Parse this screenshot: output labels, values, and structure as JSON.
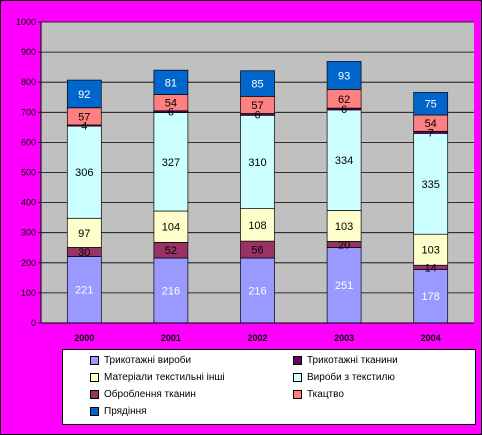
{
  "chart_data": {
    "type": "bar",
    "stacked": true,
    "categories": [
      "2000",
      "2001",
      "2002",
      "2003",
      "2004"
    ],
    "ylim": [
      0,
      1000
    ],
    "yticks": [
      0,
      100,
      200,
      300,
      400,
      500,
      600,
      700,
      800,
      900,
      1000
    ],
    "grid": true,
    "legend_position": "bottom",
    "series": [
      {
        "name": "Трикотажні вироби",
        "values": [
          221,
          216,
          216,
          251,
          178
        ],
        "color": "#9999ff"
      },
      {
        "name": "Оброблення тканин",
        "values": [
          30,
          52,
          56,
          20,
          14
        ],
        "color": "#993366"
      },
      {
        "name": "Матеріали текстильні інші",
        "values": [
          97,
          104,
          108,
          103,
          103
        ],
        "color": "#ffffcc"
      },
      {
        "name": "Вироби з текстилю",
        "values": [
          306,
          327,
          310,
          334,
          335
        ],
        "color": "#ccffff"
      },
      {
        "name": "Трикотажні тканини",
        "values": [
          4,
          6,
          6,
          6,
          7
        ],
        "color": "#660066"
      },
      {
        "name": "Ткацтво",
        "values": [
          57,
          54,
          57,
          62,
          54
        ],
        "color": "#ff8080"
      },
      {
        "name": "Прядіння",
        "values": [
          92,
          81,
          85,
          93,
          75
        ],
        "color": "#0066cc"
      }
    ]
  }
}
